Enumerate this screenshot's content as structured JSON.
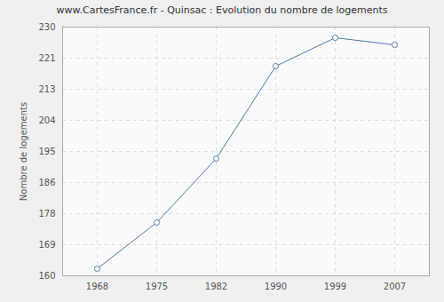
{
  "chart_data": {
    "type": "line",
    "title": "www.CartesFrance.fr - Quinsac : Evolution du nombre de logements",
    "y_label": "Nombre de logements",
    "categories": [
      "1968",
      "1975",
      "1982",
      "1990",
      "1999",
      "2007"
    ],
    "values": [
      162,
      175,
      193,
      219,
      227,
      225
    ],
    "color": "#4a7aa8",
    "marker": "circle",
    "grid": true,
    "ylim": [
      160,
      230
    ],
    "yticks": [
      160,
      {
        "value": 168.75,
        "label": "169"
      },
      {
        "value": 177.5,
        "label": "178"
      },
      {
        "value": 186.25,
        "label": "186"
      },
      195,
      {
        "value": 203.75,
        "label": "204"
      },
      {
        "value": 212.5,
        "label": "213"
      },
      {
        "value": 221.25,
        "label": "221"
      },
      230
    ]
  }
}
